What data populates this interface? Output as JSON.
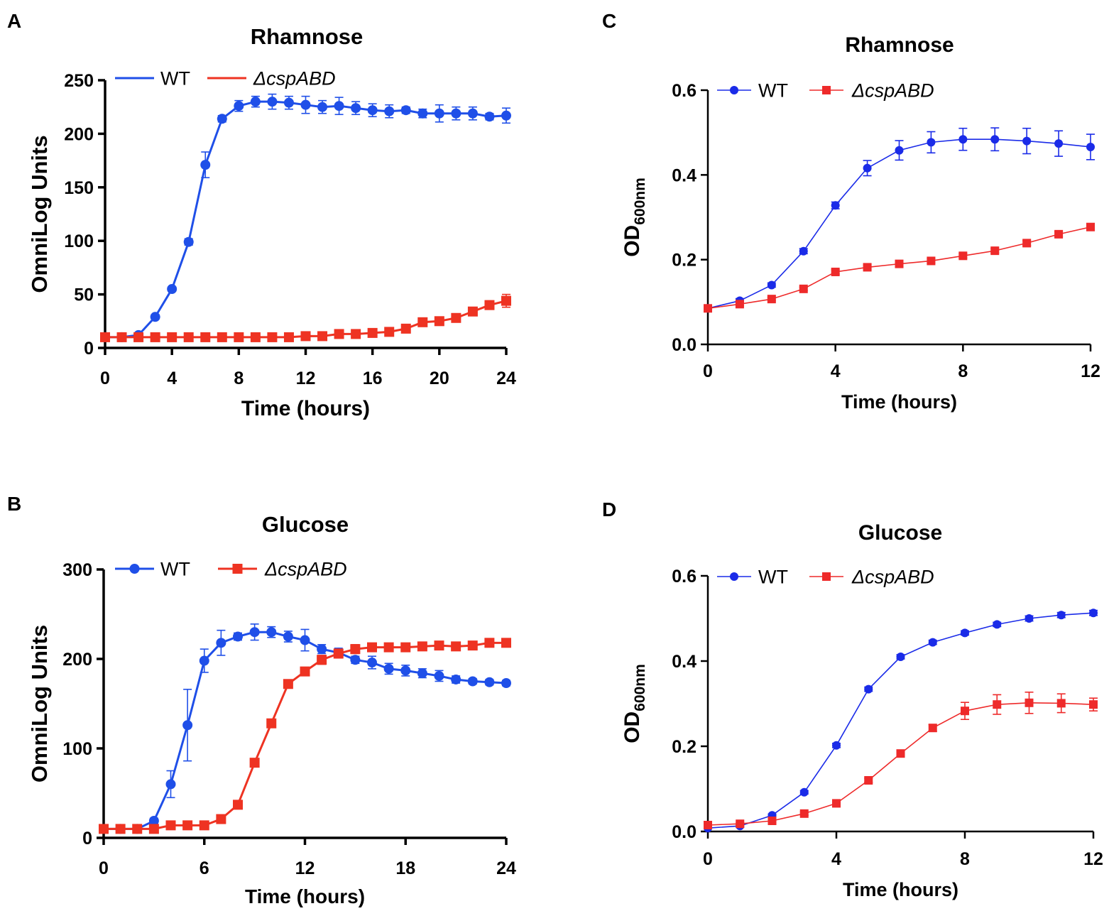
{
  "panels": [
    {
      "letter": "A",
      "chart_data": {
        "type": "line",
        "title": "Rhamnose",
        "xlabel": "Time (hours)",
        "ylabel": "OmniLog Units",
        "xlim": [
          0,
          24
        ],
        "ylim": [
          0,
          250
        ],
        "xticks": [
          0,
          4,
          8,
          12,
          16,
          20,
          24
        ],
        "yticks": [
          0,
          50,
          100,
          150,
          200,
          250
        ],
        "legend": "top-left",
        "series": [
          {
            "name": "WT",
            "italic": false,
            "color": "#1f4fe8",
            "marker": "circle",
            "x": [
              0,
              1,
              2,
              3,
              4,
              5,
              6,
              7,
              8,
              9,
              10,
              11,
              12,
              13,
              14,
              15,
              16,
              17,
              18,
              19,
              20,
              21,
              22,
              23,
              24
            ],
            "y": [
              10,
              10,
              12,
              29,
              55,
              99,
              171,
              214,
              226,
              230,
              230,
              229,
              227,
              225,
              226,
              224,
              222,
              221,
              222,
              219,
              219,
              219,
              219,
              216,
              217
            ],
            "err": [
              0,
              0,
              0,
              2,
              2,
              3,
              12,
              3,
              5,
              5,
              7,
              6,
              8,
              6,
              8,
              6,
              6,
              6,
              3,
              4,
              8,
              6,
              6,
              3,
              7
            ]
          },
          {
            "name": "ΔcspABD",
            "italic": true,
            "color": "#ee3322",
            "marker": "square",
            "x": [
              0,
              1,
              2,
              3,
              4,
              5,
              6,
              7,
              8,
              9,
              10,
              11,
              12,
              13,
              14,
              15,
              16,
              17,
              18,
              19,
              20,
              21,
              22,
              23,
              24
            ],
            "y": [
              10,
              10,
              10,
              10,
              10,
              10,
              10,
              10,
              10,
              10,
              10,
              10,
              11,
              11,
              13,
              13,
              14,
              15,
              18,
              24,
              25,
              28,
              34,
              40,
              44
            ],
            "err": [
              0,
              0,
              0,
              0,
              0,
              0,
              0,
              0,
              0,
              0,
              0,
              0,
              1,
              1,
              2,
              2,
              2,
              2,
              2,
              3,
              3,
              3,
              3,
              4,
              6
            ]
          }
        ]
      }
    },
    {
      "letter": "B",
      "chart_data": {
        "type": "line",
        "title": "Glucose",
        "xlabel": "Time (hours)",
        "ylabel": "OmniLog Units",
        "xlim": [
          0,
          24
        ],
        "ylim": [
          0,
          300
        ],
        "xticks": [
          0,
          6,
          12,
          18,
          24
        ],
        "yticks": [
          0,
          100,
          200,
          300
        ],
        "legend": "top-left",
        "series": [
          {
            "name": "WT",
            "italic": false,
            "color": "#1f4fe8",
            "marker": "circle",
            "x": [
              0,
              1,
              2,
              3,
              4,
              5,
              6,
              7,
              8,
              9,
              10,
              11,
              12,
              13,
              14,
              15,
              16,
              17,
              18,
              19,
              20,
              21,
              22,
              23,
              24
            ],
            "y": [
              10,
              10,
              10,
              19,
              60,
              126,
              198,
              218,
              225,
              230,
              230,
              225,
              221,
              211,
              207,
              199,
              196,
              189,
              187,
              184,
              181,
              177,
              175,
              174,
              173
            ],
            "err": [
              0,
              0,
              0,
              3,
              15,
              40,
              13,
              14,
              4,
              9,
              6,
              6,
              12,
              5,
              5,
              4,
              7,
              6,
              6,
              5,
              6,
              4,
              3,
              3,
              3
            ]
          },
          {
            "name": "ΔcspABD",
            "italic": true,
            "color": "#ee3322",
            "marker": "square",
            "x": [
              0,
              1,
              2,
              3,
              4,
              5,
              6,
              7,
              8,
              9,
              10,
              11,
              12,
              13,
              14,
              15,
              16,
              17,
              18,
              19,
              20,
              21,
              22,
              23,
              24
            ],
            "y": [
              10,
              10,
              10,
              10,
              14,
              14,
              14,
              21,
              37,
              84,
              128,
              172,
              186,
              199,
              206,
              211,
              213,
              213,
              213,
              214,
              215,
              214,
              215,
              218,
              218
            ],
            "err": [
              0,
              0,
              0,
              0,
              2,
              2,
              2,
              2,
              2,
              3,
              3,
              3,
              4,
              5,
              5,
              5,
              4,
              4,
              4,
              4,
              4,
              4,
              4,
              4,
              4
            ]
          }
        ]
      }
    },
    {
      "letter": "C",
      "chart_data": {
        "type": "line",
        "title": "Rhamnose",
        "xlabel": "Time (hours)",
        "ylabel": "OD",
        "ylabel_sub": "600nm",
        "xlim": [
          0,
          12
        ],
        "ylim": [
          0,
          0.6
        ],
        "xticks": [
          0,
          4,
          8,
          12
        ],
        "yticks": [
          "0.0",
          "0.2",
          "0.4",
          "0.6"
        ],
        "legend": "top-left",
        "series": [
          {
            "name": "WT",
            "italic": false,
            "color": "#1a2be8",
            "marker": "circle",
            "x": [
              0,
              1,
              2,
              3,
              4,
              5,
              6,
              7,
              8,
              9,
              10,
              11,
              12
            ],
            "y": [
              0.085,
              0.103,
              0.14,
              0.22,
              0.328,
              0.416,
              0.458,
              0.477,
              0.484,
              0.484,
              0.48,
              0.474,
              0.466
            ],
            "err": [
              0,
              0.005,
              0.005,
              0.006,
              0.008,
              0.018,
              0.023,
              0.025,
              0.026,
              0.027,
              0.03,
              0.03,
              0.03
            ]
          },
          {
            "name": "ΔcspABD",
            "italic": true,
            "color": "#ee2a2a",
            "marker": "square",
            "x": [
              0,
              1,
              2,
              3,
              4,
              5,
              6,
              7,
              8,
              9,
              10,
              11,
              12
            ],
            "y": [
              0.085,
              0.095,
              0.107,
              0.131,
              0.171,
              0.182,
              0.19,
              0.197,
              0.209,
              0.221,
              0.239,
              0.26,
              0.277
            ],
            "err": [
              0,
              0.004,
              0.004,
              0.004,
              0.005,
              0.005,
              0.005,
              0.005,
              0.005,
              0.005,
              0.006,
              0.006,
              0.006
            ]
          }
        ]
      }
    },
    {
      "letter": "D",
      "chart_data": {
        "type": "line",
        "title": "Glucose",
        "xlabel": "Time (hours)",
        "ylabel": "OD",
        "ylabel_sub": "600nm",
        "xlim": [
          0,
          12
        ],
        "ylim": [
          0,
          0.6
        ],
        "xticks": [
          0,
          4,
          8,
          12
        ],
        "yticks": [
          "0.0",
          "0.2",
          "0.4",
          "0.6"
        ],
        "legend": "top-left",
        "series": [
          {
            "name": "WT",
            "italic": false,
            "color": "#1a2be8",
            "marker": "circle",
            "x": [
              0,
              1,
              2,
              3,
              4,
              5,
              6,
              7,
              8,
              9,
              10,
              11,
              12
            ],
            "y": [
              0.008,
              0.013,
              0.038,
              0.092,
              0.202,
              0.334,
              0.41,
              0.444,
              0.466,
              0.486,
              0.5,
              0.508,
              0.513
            ],
            "err": [
              0,
              0.003,
              0.003,
              0.004,
              0.005,
              0.005,
              0.005,
              0.005,
              0.005,
              0.005,
              0.006,
              0.006,
              0.006
            ]
          },
          {
            "name": "ΔcspABD",
            "italic": true,
            "color": "#ee2a2a",
            "marker": "square",
            "x": [
              0,
              1,
              2,
              3,
              4,
              5,
              6,
              7,
              8,
              9,
              10,
              11,
              12
            ],
            "y": [
              0.015,
              0.018,
              0.025,
              0.042,
              0.066,
              0.12,
              0.183,
              0.243,
              0.283,
              0.298,
              0.302,
              0.301,
              0.298
            ],
            "err": [
              0,
              0.003,
              0.003,
              0.004,
              0.004,
              0.005,
              0.006,
              0.008,
              0.02,
              0.023,
              0.025,
              0.022,
              0.015
            ]
          }
        ]
      }
    }
  ]
}
